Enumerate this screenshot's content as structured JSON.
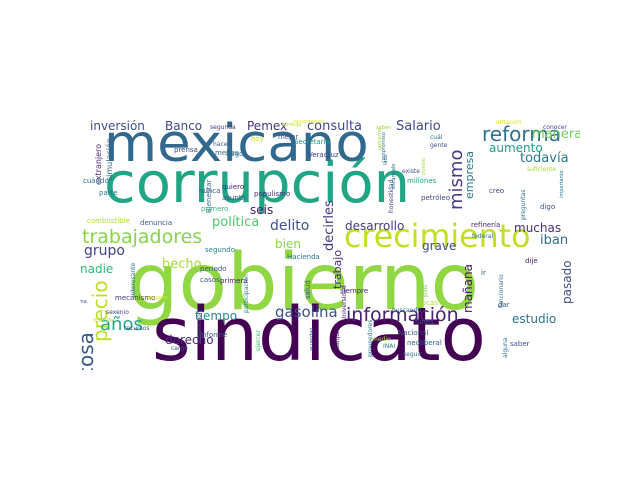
{
  "palette": {
    "dark_purple": "#440154",
    "indigo": "#3b528b",
    "blue": "#31688e",
    "teal": "#21918c",
    "green": "#35b779",
    "lime": "#90d743",
    "yellow": "#dce319",
    "light_green": "#a0da39"
  },
  "words": [
    {
      "text": "gobierno",
      "color": "#90d743",
      "size": 78,
      "vertical": false
    },
    {
      "text": "sindicato",
      "color": "#440154",
      "size": 74,
      "vertical": false
    },
    {
      "text": "corrupción",
      "color": "#21a685",
      "size": 56,
      "vertical": false
    },
    {
      "text": "mexicano",
      "color": "#31688e",
      "size": 52,
      "vertical": false
    },
    {
      "text": "crecimiento",
      "color": "#c2df23",
      "size": 32,
      "vertical": false
    },
    {
      "text": "trabajadores",
      "color": "#86d549",
      "size": 19,
      "vertical": false
    },
    {
      "text": "reforma",
      "color": "#2c728e",
      "size": 20,
      "vertical": false
    },
    {
      "text": "información",
      "color": "#482374",
      "size": 19,
      "vertical": false
    },
    {
      "text": "mismo",
      "color": "#433e85",
      "size": 18,
      "vertical": true
    },
    {
      "text": "precio",
      "color": "#bddf26",
      "size": 20,
      "vertical": true
    },
    {
      "text": "cosa",
      "color": "#38598c",
      "size": 20,
      "vertical": true
    },
    {
      "text": "años",
      "color": "#22a884",
      "size": 18,
      "vertical": false
    },
    {
      "text": "gasolina",
      "color": "#3b528b",
      "size": 15,
      "vertical": false
    },
    {
      "text": "delito",
      "color": "#3b528b",
      "size": 14,
      "vertical": false
    },
    {
      "text": "grupo",
      "color": "#414487",
      "size": 14,
      "vertical": false
    },
    {
      "text": "consulta",
      "color": "#3f4788",
      "size": 13,
      "vertical": false
    },
    {
      "text": "Salario",
      "color": "#3e4a89",
      "size": 13,
      "vertical": false
    },
    {
      "text": "inversión",
      "color": "#3d4d8a",
      "size": 12,
      "vertical": false
    },
    {
      "text": "Banco",
      "color": "#404588",
      "size": 12,
      "vertical": false
    },
    {
      "text": "Pemex",
      "color": "#46327e",
      "size": 12,
      "vertical": false
    },
    {
      "text": "manera",
      "color": "#73d056",
      "size": 13,
      "vertical": false
    },
    {
      "text": "aumento",
      "color": "#1f9a8a",
      "size": 12,
      "vertical": false
    },
    {
      "text": "empresa",
      "color": "#2a788e",
      "size": 11,
      "vertical": true
    },
    {
      "text": "todavía",
      "color": "#2a788e",
      "size": 13,
      "vertical": false
    },
    {
      "text": "política",
      "color": "#52c569",
      "size": 13,
      "vertical": false
    },
    {
      "text": "hecho",
      "color": "#a2da37",
      "size": 13,
      "vertical": false
    },
    {
      "text": "seis",
      "color": "#481a6c",
      "size": 12,
      "vertical": false
    },
    {
      "text": "bien",
      "color": "#8bd646",
      "size": 12,
      "vertical": false
    },
    {
      "text": "decirles",
      "color": "#453882",
      "size": 13,
      "vertical": true
    },
    {
      "text": "trabajo",
      "color": "#472d7b",
      "size": 11,
      "vertical": true
    },
    {
      "text": "desarrollo",
      "color": "#443a83",
      "size": 12,
      "vertical": false
    },
    {
      "text": "grave",
      "color": "#3f4889",
      "size": 12,
      "vertical": false
    },
    {
      "text": "iban",
      "color": "#2f6c8e",
      "size": 13,
      "vertical": false
    },
    {
      "text": "muchas",
      "color": "#472f7d",
      "size": 12,
      "vertical": false
    },
    {
      "text": "mañana",
      "color": "#481668",
      "size": 12,
      "vertical": true
    },
    {
      "text": "pasado",
      "color": "#3e4c8a",
      "size": 12,
      "vertical": true
    },
    {
      "text": "estudio",
      "color": "#2c738e",
      "size": 12,
      "vertical": false
    },
    {
      "text": "nadie",
      "color": "#31b57b",
      "size": 12,
      "vertical": false
    },
    {
      "text": "tiempo",
      "color": "#23898e",
      "size": 12,
      "vertical": false
    },
    {
      "text": "derecho",
      "color": "#472c7a",
      "size": 12,
      "vertical": false
    },
    {
      "text": "extranjero",
      "color": "#482576",
      "size": 8,
      "vertical": true
    },
    {
      "text": "simulación",
      "color": "#32658e",
      "size": 8,
      "vertical": true
    },
    {
      "text": "entrevista",
      "color": "#2d708e",
      "size": 7,
      "vertical": true
    },
    {
      "text": "combustible",
      "color": "#addc30",
      "size": 7,
      "vertical": false
    },
    {
      "text": "denuncia",
      "color": "#375a8c",
      "size": 7,
      "vertical": false
    },
    {
      "text": "Bienestar",
      "color": "#2e6d8e",
      "size": 7,
      "vertical": true
    },
    {
      "text": "segundo",
      "color": "#26828e",
      "size": 7,
      "vertical": false
    },
    {
      "text": "primero",
      "color": "#3aba76",
      "size": 7,
      "vertical": false
    },
    {
      "text": "nunca",
      "color": "#3b528b",
      "size": 7,
      "vertical": false
    },
    {
      "text": "quiero",
      "color": "#482071",
      "size": 7,
      "vertical": false
    },
    {
      "text": "asunto",
      "color": "#3b528b",
      "size": 7,
      "vertical": false
    },
    {
      "text": "prensa",
      "color": "#3e4989",
      "size": 7,
      "vertical": false
    },
    {
      "text": "hacen",
      "color": "#38598c",
      "size": 6,
      "vertical": false
    },
    {
      "text": "menos",
      "color": "#355f8d",
      "size": 7,
      "vertical": false
    },
    {
      "text": "mejor",
      "color": "#3b528b",
      "size": 7,
      "vertical": false
    },
    {
      "text": "hago",
      "color": "#2c728e",
      "size": 7,
      "vertical": false
    },
    {
      "text": "hoy",
      "color": "#bddf26",
      "size": 7,
      "vertical": false
    },
    {
      "text": "Secretaría",
      "color": "#1f968b",
      "size": 7,
      "vertical": false
    },
    {
      "text": "Veracruz",
      "color": "#414487",
      "size": 7,
      "vertical": false
    },
    {
      "text": "populismo",
      "color": "#46307e",
      "size": 7,
      "vertical": false
    },
    {
      "text": "segunda",
      "color": "#453781",
      "size": 6,
      "vertical": false
    },
    {
      "text": "burbuja",
      "color": "#b8de29",
      "size": 5,
      "vertical": false
    },
    {
      "text": "necesitamos",
      "color": "#e2e418",
      "size": 5,
      "vertical": false
    },
    {
      "text": "saben",
      "color": "#9bd93c",
      "size": 5,
      "vertical": false
    },
    {
      "text": "inflación",
      "color": "#d8e219",
      "size": 6,
      "vertical": false
    },
    {
      "text": "conocer",
      "color": "#414487",
      "size": 6,
      "vertical": false
    },
    {
      "text": "cuál",
      "color": "#2c728e",
      "size": 6,
      "vertical": false
    },
    {
      "text": "gente",
      "color": "#3b528b",
      "size": 6,
      "vertical": false
    },
    {
      "text": "lado",
      "color": "#31688e",
      "size": 5,
      "vertical": true
    },
    {
      "text": "existe",
      "color": "#3b528b",
      "size": 6,
      "vertical": false
    },
    {
      "text": "millones",
      "color": "#22a884",
      "size": 7,
      "vertical": false
    },
    {
      "text": "petróleo",
      "color": "#3e4a89",
      "size": 7,
      "vertical": false
    },
    {
      "text": "creo",
      "color": "#414487",
      "size": 7,
      "vertical": false
    },
    {
      "text": "refinería",
      "color": "#482878",
      "size": 7,
      "vertical": false
    },
    {
      "text": "federal",
      "color": "#2a788e",
      "size": 6,
      "vertical": false
    },
    {
      "text": "suficiente",
      "color": "#a5db36",
      "size": 6,
      "vertical": false
    },
    {
      "text": "digo",
      "color": "#3b528b",
      "size": 7,
      "vertical": false
    },
    {
      "text": "preguntas",
      "color": "#2f6c8e",
      "size": 6,
      "vertical": true
    },
    {
      "text": "importante",
      "color": "#2c728e",
      "size": 5,
      "vertical": true
    },
    {
      "text": "dije",
      "color": "#481f70",
      "size": 7,
      "vertical": false
    },
    {
      "text": "funcionario",
      "color": "#2f6c8e",
      "size": 6,
      "vertical": true
    },
    {
      "text": "ir",
      "color": "#365c8d",
      "size": 7,
      "vertical": false
    },
    {
      "text": "dar",
      "color": "#3b528b",
      "size": 7,
      "vertical": false
    },
    {
      "text": "lunes",
      "color": "#3b528b",
      "size": 7,
      "vertical": false
    },
    {
      "text": "Nacional",
      "color": "#3b528b",
      "size": 7,
      "vertical": false
    },
    {
      "text": "neoliberal",
      "color": "#32648e",
      "size": 7,
      "vertical": false
    },
    {
      "text": "alguna",
      "color": "#2f6b8e",
      "size": 6,
      "vertical": true
    },
    {
      "text": "saber",
      "color": "#3b528b",
      "size": 7,
      "vertical": false
    },
    {
      "text": "seguir",
      "color": "#2c728e",
      "size": 6,
      "vertical": false
    },
    {
      "text": "INAI",
      "color": "#2a788e",
      "size": 6,
      "vertical": false
    },
    {
      "text": "medio",
      "color": "#a2da37",
      "size": 6,
      "vertical": false
    },
    {
      "text": "buscando",
      "color": "#2c728e",
      "size": 6,
      "vertical": false
    },
    {
      "text": "Bocas",
      "color": "#b0dd2f",
      "size": 7,
      "vertical": false
    },
    {
      "text": "país",
      "color": "#7ad151",
      "size": 6,
      "vertical": true
    },
    {
      "text": "siempre",
      "color": "#482878",
      "size": 7,
      "vertical": false
    },
    {
      "text": "Universidad",
      "color": "#482173",
      "size": 6,
      "vertical": true
    },
    {
      "text": "cualquier",
      "color": "#460b5e",
      "size": 6,
      "vertical": true
    },
    {
      "text": "salud",
      "color": "#3b528b",
      "size": 7,
      "vertical": true
    },
    {
      "text": "Hacienda",
      "color": "#2c728e",
      "size": 7,
      "vertical": false
    },
    {
      "text": "periodo",
      "color": "#3b528b",
      "size": 7,
      "vertical": false
    },
    {
      "text": "participación",
      "color": "#25858e",
      "size": 6,
      "vertical": true
    },
    {
      "text": "primera",
      "color": "#481769",
      "size": 7,
      "vertical": false
    },
    {
      "text": "casos",
      "color": "#3b528b",
      "size": 7,
      "vertical": false
    },
    {
      "text": "mecanismo",
      "color": "#453781",
      "size": 7,
      "vertical": false
    },
    {
      "text": "interesante",
      "color": "#2c728e",
      "size": 6,
      "vertical": true
    },
    {
      "text": "sexenio",
      "color": "#433e85",
      "size": 6,
      "vertical": false
    },
    {
      "text": "forma",
      "color": "#3b528b",
      "size": 5,
      "vertical": false
    },
    {
      "text": "mundo",
      "color": "#bddf26",
      "size": 6,
      "vertical": false
    },
    {
      "text": "respeto",
      "color": "#e5e419",
      "size": 5,
      "vertical": false
    },
    {
      "text": "recursos",
      "color": "#3b528b",
      "size": 6,
      "vertical": false
    },
    {
      "text": "cargo",
      "color": "#3b528b",
      "size": 6,
      "vertical": false
    },
    {
      "text": "cuatro",
      "color": "#482475",
      "size": 6,
      "vertical": false
    },
    {
      "text": "suspensión",
      "color": "#3b528b",
      "size": 6,
      "vertical": true
    },
    {
      "text": "informe",
      "color": "#3b528b",
      "size": 7,
      "vertical": false
    },
    {
      "text": "ejercer",
      "color": "#3bbb75",
      "size": 6,
      "vertical": true
    },
    {
      "text": "acuerdan",
      "color": "#3b528b",
      "size": 5,
      "vertical": true
    },
    {
      "text": "proveedores",
      "color": "#2c728e",
      "size": 6,
      "vertical": true
    },
    {
      "text": "compromiso",
      "color": "#2c728e",
      "size": 5,
      "vertical": true
    },
    {
      "text": "honestidad",
      "color": "#433e85",
      "size": 6,
      "vertical": true
    },
    {
      "text": "escándalo",
      "color": "#2c728e",
      "size": 5,
      "vertical": true
    },
    {
      "text": "pueblo",
      "color": "#9fda3a",
      "size": 5,
      "vertical": true
    },
    {
      "text": "cuándo",
      "color": "#2c728e",
      "size": 7,
      "vertical": false
    },
    {
      "text": "parte",
      "color": "#2c728e",
      "size": 7,
      "vertical": false
    },
    {
      "text": "gobierno",
      "color": "#a2da37",
      "size": 5,
      "vertical": true
    }
  ]
}
